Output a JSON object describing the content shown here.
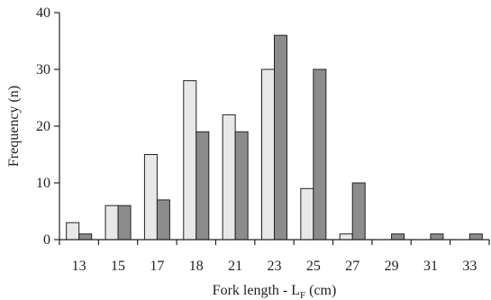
{
  "chart_data": {
    "type": "bar",
    "categories": [
      "13",
      "15",
      "17",
      "18",
      "21",
      "23",
      "25",
      "27",
      "29",
      "31",
      "33"
    ],
    "series": [
      {
        "color": "#e8e8e8",
        "values": [
          3,
          6,
          15,
          28,
          22,
          30,
          9,
          1,
          0,
          0,
          0
        ]
      },
      {
        "color": "#8c8c8c",
        "values": [
          1,
          6,
          7,
          19,
          19,
          36,
          30,
          10,
          1,
          1,
          1
        ]
      }
    ],
    "title": "",
    "xlabel": "Fork length - L",
    "xlabel_subscript": "F",
    "xlabel_unit": "(cm)",
    "ylabel": "Frequency (n)",
    "ylim": [
      0,
      40
    ],
    "yticks": [
      0,
      10,
      20,
      30,
      40
    ],
    "grid": false,
    "legend": "none"
  }
}
